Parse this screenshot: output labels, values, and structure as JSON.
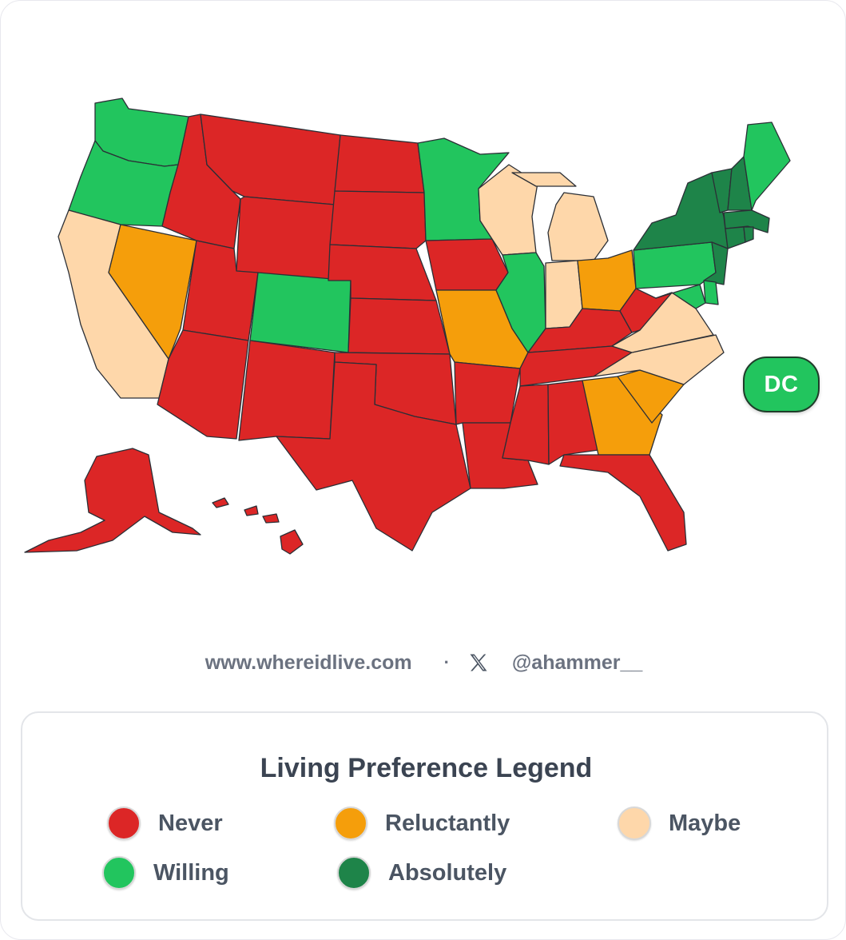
{
  "colors": {
    "never": "#dc2626",
    "reluctantly": "#f59e0b",
    "maybe": "#fed7aa",
    "willing": "#22c55e",
    "absolutely": "#1e8449"
  },
  "states": {
    "WA": "willing",
    "OR": "willing",
    "CA": "maybe",
    "NV": "reluctantly",
    "ID": "never",
    "MT": "never",
    "WY": "never",
    "UT": "never",
    "AZ": "never",
    "CO": "willing",
    "NM": "never",
    "ND": "never",
    "SD": "never",
    "NE": "never",
    "KS": "never",
    "OK": "never",
    "TX": "never",
    "MN": "willing",
    "IA": "never",
    "MO": "reluctantly",
    "AR": "never",
    "LA": "never",
    "WI": "maybe",
    "IL": "willing",
    "MI": "maybe",
    "IN": "maybe",
    "OH": "reluctantly",
    "KY": "never",
    "TN": "never",
    "MS": "never",
    "AL": "never",
    "GA": "reluctantly",
    "FL": "never",
    "SC": "reluctantly",
    "NC": "maybe",
    "VA": "maybe",
    "WV": "never",
    "PA": "willing",
    "NY": "absolutely",
    "VT": "absolutely",
    "NH": "absolutely",
    "ME": "willing",
    "MA": "absolutely",
    "CT": "absolutely",
    "RI": "absolutely",
    "NJ": "absolutely",
    "DE": "willing",
    "MD": "willing",
    "AK": "never",
    "HI": "never",
    "DC": "willing"
  },
  "dc_badge": {
    "label": "DC"
  },
  "credits": {
    "website": "www.whereidlive.com",
    "separator": "·",
    "social_icon": "x-icon",
    "handle": "@ahammer__"
  },
  "legend": {
    "title": "Living Preference Legend",
    "items": [
      {
        "key": "never",
        "label": "Never"
      },
      {
        "key": "reluctantly",
        "label": "Reluctantly"
      },
      {
        "key": "maybe",
        "label": "Maybe"
      },
      {
        "key": "willing",
        "label": "Willing"
      },
      {
        "key": "absolutely",
        "label": "Absolutely"
      }
    ]
  }
}
